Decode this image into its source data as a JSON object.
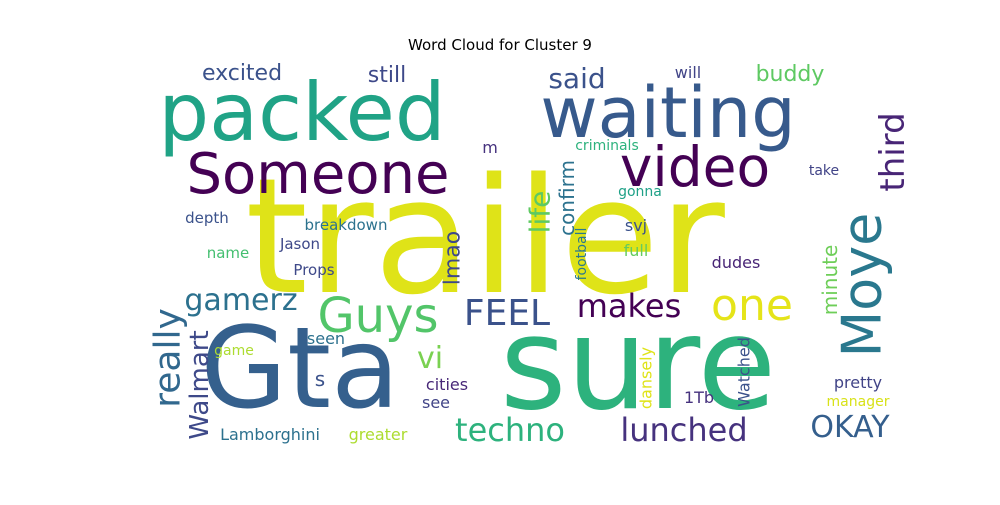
{
  "chart_data": {
    "type": "wordcloud",
    "title": "Word Cloud for Cluster 9",
    "colormap": "viridis",
    "background": "#ffffff",
    "words": [
      {
        "text": "trailer",
        "color": "#dfe318"
      },
      {
        "text": "sure",
        "color": "#2db27d"
      },
      {
        "text": "Gta",
        "color": "#35608d"
      },
      {
        "text": "packed",
        "color": "#20a386"
      },
      {
        "text": "waiting",
        "color": "#375a8c"
      },
      {
        "text": "Someone",
        "color": "#440154"
      },
      {
        "text": "video",
        "color": "#440154"
      },
      {
        "text": "Moye",
        "color": "#2a788e"
      },
      {
        "text": "Guys",
        "color": "#52c569"
      },
      {
        "text": "one",
        "color": "#e5e419"
      },
      {
        "text": "third",
        "color": "#482576"
      },
      {
        "text": "FEEL",
        "color": "#3b528b"
      },
      {
        "text": "makes",
        "color": "#440154"
      },
      {
        "text": "really",
        "color": "#31688e"
      },
      {
        "text": "techno",
        "color": "#2db27d"
      },
      {
        "text": "lunched",
        "color": "#46327e"
      },
      {
        "text": "OKAY",
        "color": "#355f8d"
      },
      {
        "text": "gamerz",
        "color": "#2c718e"
      },
      {
        "text": "life",
        "color": "#5ec962"
      },
      {
        "text": "said",
        "color": "#3b528b"
      },
      {
        "text": "vi",
        "color": "#7ad151"
      },
      {
        "text": "Walmart",
        "color": "#3e4989"
      },
      {
        "text": "lmao",
        "color": "#3e4989"
      },
      {
        "text": "confirm",
        "color": "#2c728e"
      },
      {
        "text": "excited",
        "color": "#3b528b"
      },
      {
        "text": "still",
        "color": "#3e4989"
      },
      {
        "text": "buddy",
        "color": "#5ec962"
      },
      {
        "text": "minute",
        "color": "#6ece58"
      },
      {
        "text": "will",
        "color": "#414487"
      },
      {
        "text": "Lamborghini",
        "color": "#2c718e"
      },
      {
        "text": "greater",
        "color": "#addc30"
      },
      {
        "text": "pretty",
        "color": "#414487"
      },
      {
        "text": "Watched",
        "color": "#3b528b"
      },
      {
        "text": "dansely",
        "color": "#dfe318"
      },
      {
        "text": "manager",
        "color": "#d8e219"
      },
      {
        "text": "cities",
        "color": "#482878"
      },
      {
        "text": "1Tb",
        "color": "#46327e"
      },
      {
        "text": "see",
        "color": "#414487"
      },
      {
        "text": "game",
        "color": "#addc30"
      },
      {
        "text": "seen",
        "color": "#2c718e"
      },
      {
        "text": "s",
        "color": "#3b528b"
      },
      {
        "text": "dudes",
        "color": "#482576"
      },
      {
        "text": "take",
        "color": "#414487"
      },
      {
        "text": "criminals",
        "color": "#2db27d"
      },
      {
        "text": "m",
        "color": "#46327e"
      },
      {
        "text": "gonna",
        "color": "#1fa187"
      },
      {
        "text": "svj",
        "color": "#3b528b"
      },
      {
        "text": "full",
        "color": "#65cb5e"
      },
      {
        "text": "football",
        "color": "#2a788e"
      },
      {
        "text": "depth",
        "color": "#3b528b"
      },
      {
        "text": "breakdown",
        "color": "#2c728e"
      },
      {
        "text": "Jason",
        "color": "#3e4989"
      },
      {
        "text": "name",
        "color": "#44bf70"
      },
      {
        "text": "Props",
        "color": "#3e4989"
      }
    ]
  }
}
